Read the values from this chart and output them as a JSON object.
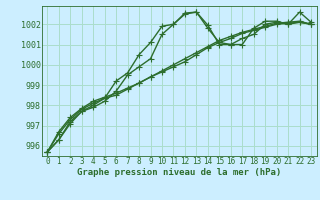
{
  "title": "Graphe pression niveau de la mer (hPa)",
  "bg_color": "#cceeff",
  "grid_color": "#aaddcc",
  "line_color": "#2d6e2d",
  "x_labels": [
    "0",
    "1",
    "2",
    "3",
    "4",
    "5",
    "6",
    "7",
    "8",
    "9",
    "10",
    "11",
    "12",
    "13",
    "14",
    "15",
    "16",
    "17",
    "18",
    "19",
    "20",
    "21",
    "22",
    "23"
  ],
  "ylim": [
    995.5,
    1002.9
  ],
  "yticks": [
    996,
    997,
    998,
    999,
    1000,
    1001,
    1002
  ],
  "series": [
    [
      995.7,
      996.3,
      997.2,
      997.7,
      997.9,
      998.2,
      998.7,
      999.5,
      999.9,
      1000.3,
      1001.5,
      1002.0,
      1002.5,
      1002.6,
      1001.8,
      1001.1,
      1001.0,
      1001.3,
      1001.5,
      1002.0,
      1002.1,
      1002.0,
      1002.1,
      1002.0
    ],
    [
      995.7,
      996.6,
      997.3,
      997.8,
      998.1,
      998.35,
      998.5,
      998.8,
      999.1,
      999.4,
      999.7,
      1000.0,
      1000.3,
      1000.6,
      1000.9,
      1001.2,
      1001.4,
      1001.6,
      1001.75,
      1001.9,
      1002.05,
      1002.1,
      1002.15,
      1002.0
    ],
    [
      995.7,
      996.7,
      997.4,
      997.85,
      998.2,
      998.4,
      998.6,
      998.85,
      999.1,
      999.4,
      999.65,
      999.9,
      1000.15,
      1000.5,
      1000.85,
      1001.1,
      1001.3,
      1001.55,
      1001.7,
      1001.85,
      1002.0,
      1002.05,
      1002.1,
      1002.0
    ],
    [
      995.7,
      996.3,
      997.1,
      997.7,
      998.0,
      998.35,
      999.2,
      999.6,
      1000.5,
      1001.1,
      1001.9,
      1002.0,
      1002.55,
      1002.6,
      1001.95,
      1001.0,
      1001.0,
      1001.0,
      1001.8,
      1002.15,
      1002.15,
      1002.0,
      1002.6,
      1002.1
    ]
  ],
  "marker": "+",
  "markersize": 4,
  "linewidth": 1.0,
  "tick_fontsize": 6,
  "label_fontsize": 6.5,
  "figsize": [
    3.2,
    2.0
  ],
  "dpi": 100
}
